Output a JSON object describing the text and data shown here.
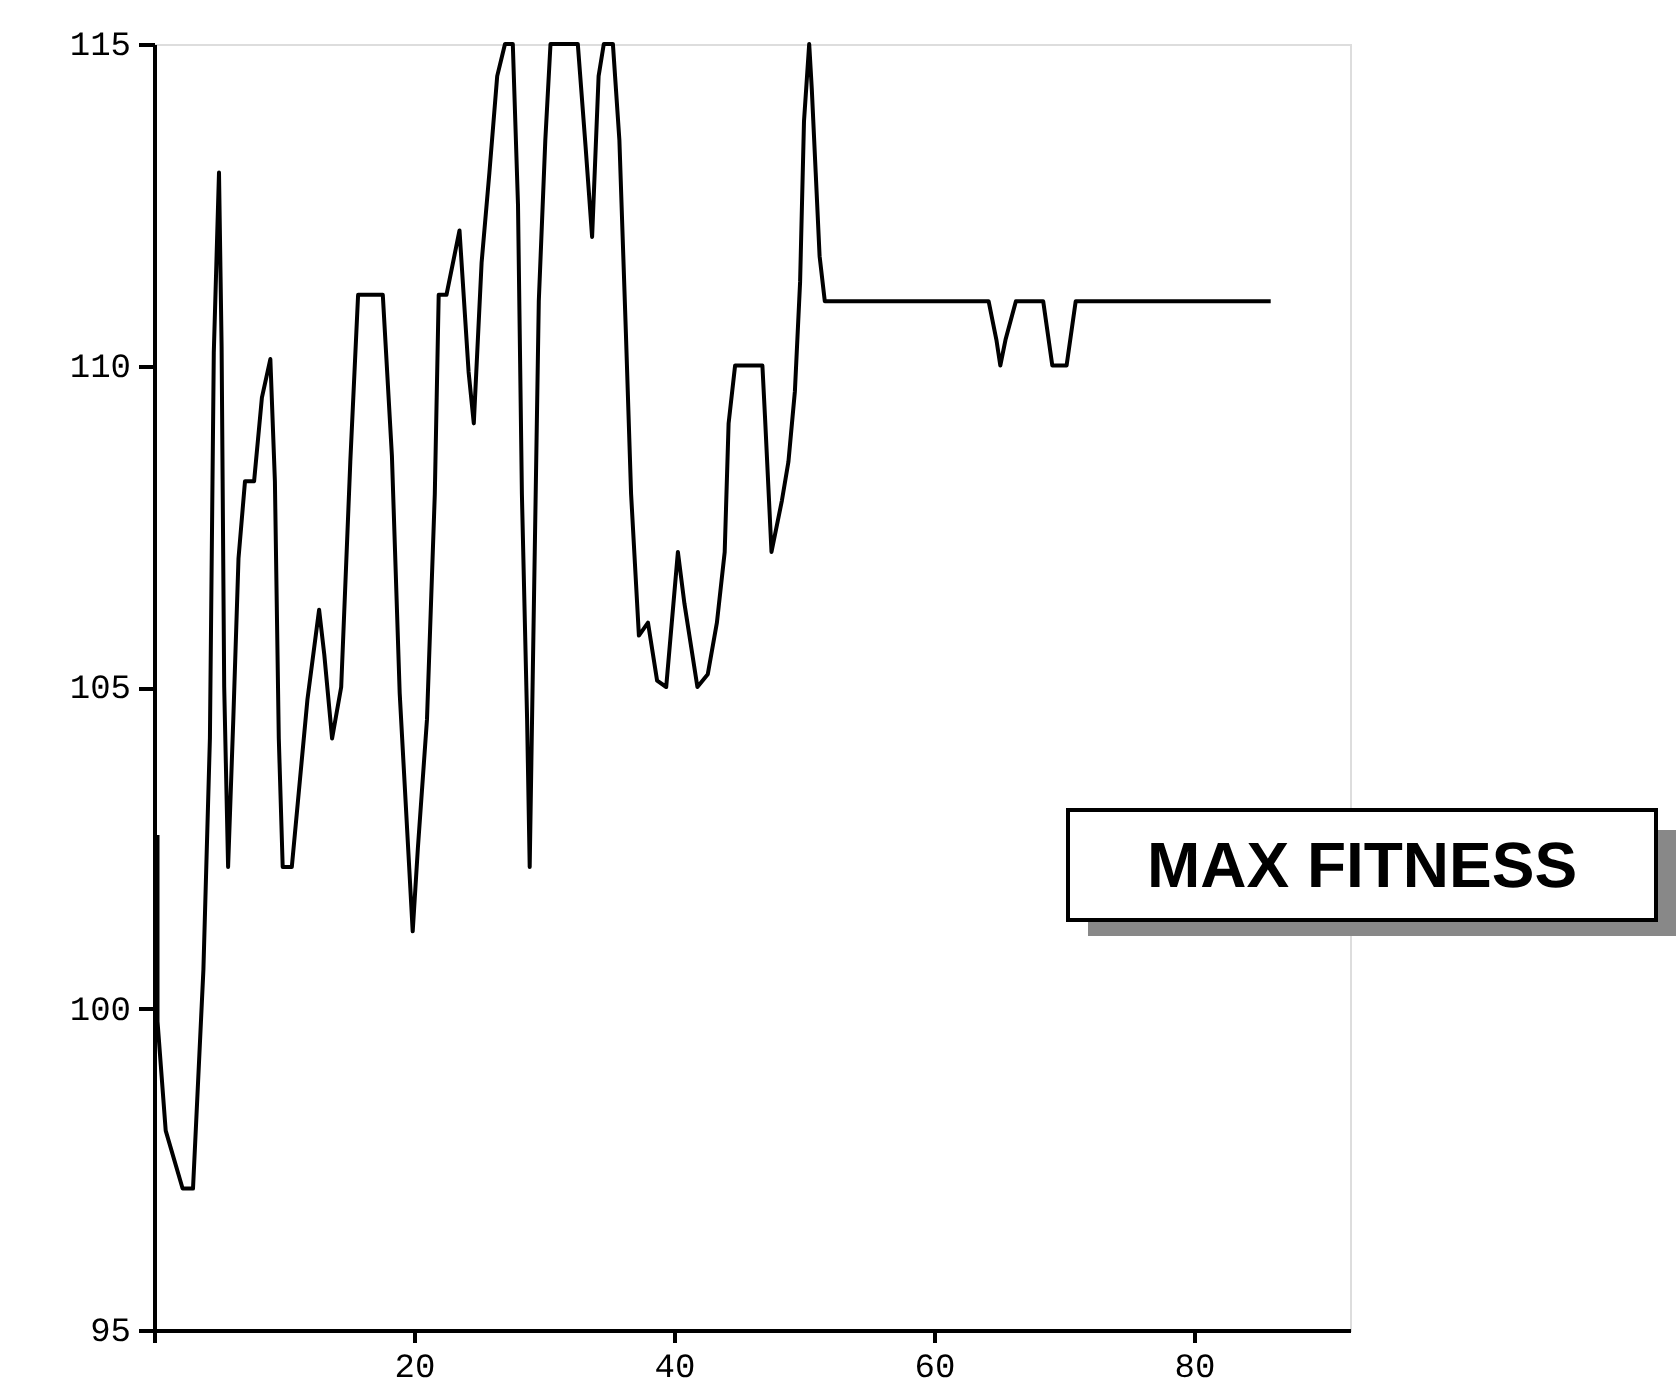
{
  "chart_data": {
    "type": "line",
    "x": [
      0.27,
      0.27,
      0.9,
      2.2,
      3.0,
      3.8,
      4.3,
      4.6,
      5.0,
      5.2,
      5.4,
      5.7,
      6.1,
      6.5,
      7.0,
      7.7,
      8.3,
      8.95,
      9.3,
      9.6,
      9.9,
      10.6,
      11.8,
      12.7,
      13.1,
      13.7,
      14.4,
      15.1,
      15.7,
      17.6,
      18.3,
      18.9,
      19.9,
      20.3,
      21.0,
      21.6,
      21.9,
      22.5,
      23.5,
      24.2,
      24.6,
      25.2,
      25.8,
      26.4,
      27.0,
      27.6,
      28.0,
      28.3,
      28.7,
      28.9,
      29.2,
      29.6,
      30.1,
      30.5,
      32.6,
      33.2,
      33.7,
      34.2,
      34.6,
      35.3,
      35.8,
      36.3,
      36.7,
      37.3,
      38.0,
      38.7,
      39.4,
      40.3,
      40.8,
      41.8,
      42.6,
      43.3,
      43.9,
      44.2,
      44.7,
      46.8,
      47.0,
      47.5,
      48.3,
      48.8,
      49.3,
      49.7,
      50.0,
      50.4,
      50.6,
      50.9,
      51.2,
      51.6,
      64.2,
      64.8,
      65.1,
      65.5,
      66.3,
      68.4,
      69.1,
      70.2,
      70.9,
      85.9
    ],
    "values": [
      102.7,
      99.8,
      98.1,
      97.2,
      97.2,
      100.6,
      104.2,
      110.2,
      113,
      110.3,
      105,
      102.2,
      104.5,
      107,
      108.2,
      108.2,
      109.5,
      110.1,
      108.2,
      104.2,
      102.2,
      102.2,
      104.8,
      106.2,
      105.5,
      104.2,
      105,
      108.5,
      111.1,
      111.1,
      108.6,
      104.9,
      101.2,
      102.5,
      104.5,
      108,
      111.1,
      111.1,
      112.1,
      109.9,
      109.1,
      111.6,
      113,
      114.5,
      115,
      115,
      112.5,
      108,
      104.5,
      102.2,
      106,
      111,
      113.5,
      115,
      115,
      113.4,
      112,
      114.5,
      115,
      115,
      113.5,
      110.5,
      108,
      105.8,
      106,
      105.1,
      105,
      107.1,
      106.3,
      105,
      105.2,
      106,
      107.1,
      109.1,
      110,
      110,
      109.2,
      107.1,
      107.9,
      108.5,
      109.6,
      111.3,
      113.8,
      115,
      114.3,
      113,
      111.7,
      111,
      111,
      110.4,
      110,
      110.4,
      111,
      111,
      110,
      110,
      111,
      111
    ],
    "color": "#000000",
    "xlim": [
      0,
      92
    ],
    "xticks": [
      {
        "value": 0,
        "label": null
      },
      20,
      40,
      60,
      80
    ],
    "ylim": [
      95,
      115
    ],
    "yticks": [
      95,
      100,
      105,
      110,
      115
    ],
    "grid": false,
    "annotations": [
      "MAX FITNESS"
    ]
  }
}
